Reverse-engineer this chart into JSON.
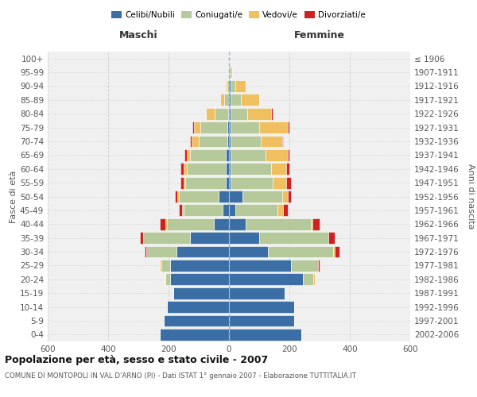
{
  "age_groups": [
    "0-4",
    "5-9",
    "10-14",
    "15-19",
    "20-24",
    "25-29",
    "30-34",
    "35-39",
    "40-44",
    "45-49",
    "50-54",
    "55-59",
    "60-64",
    "65-69",
    "70-74",
    "75-79",
    "80-84",
    "85-89",
    "90-94",
    "95-99",
    "100+"
  ],
  "birth_years": [
    "2002-2006",
    "1997-2001",
    "1992-1996",
    "1987-1991",
    "1982-1986",
    "1977-1981",
    "1972-1976",
    "1967-1971",
    "1962-1966",
    "1957-1961",
    "1952-1956",
    "1947-1951",
    "1942-1946",
    "1937-1941",
    "1932-1936",
    "1927-1931",
    "1922-1926",
    "1917-1921",
    "1912-1916",
    "1907-1911",
    "≤ 1906"
  ],
  "colors": {
    "celibi": "#3a6ea5",
    "coniugati": "#b5c99a",
    "vedovi": "#f0c060",
    "divorziati": "#cc2222"
  },
  "males": {
    "celibi": [
      230,
      215,
      205,
      185,
      195,
      195,
      175,
      130,
      50,
      20,
      35,
      10,
      10,
      10,
      5,
      5,
      2,
      0,
      0,
      0,
      0
    ],
    "coniugati": [
      0,
      0,
      0,
      0,
      15,
      30,
      100,
      155,
      155,
      130,
      130,
      135,
      130,
      120,
      95,
      90,
      45,
      15,
      5,
      0,
      0
    ],
    "vedovi": [
      0,
      0,
      0,
      0,
      0,
      5,
      0,
      0,
      5,
      5,
      5,
      5,
      10,
      10,
      25,
      20,
      30,
      15,
      5,
      0,
      0
    ],
    "divorziati": [
      0,
      0,
      0,
      0,
      0,
      0,
      5,
      10,
      20,
      10,
      10,
      10,
      10,
      8,
      5,
      5,
      0,
      0,
      0,
      0,
      0
    ]
  },
  "females": {
    "celibi": [
      240,
      215,
      215,
      185,
      245,
      205,
      130,
      100,
      55,
      20,
      45,
      5,
      5,
      5,
      5,
      5,
      5,
      5,
      5,
      0,
      0
    ],
    "coniugati": [
      0,
      0,
      0,
      0,
      35,
      90,
      215,
      230,
      215,
      140,
      130,
      140,
      135,
      115,
      100,
      95,
      55,
      35,
      15,
      5,
      0
    ],
    "vedovi": [
      0,
      0,
      0,
      0,
      5,
      0,
      5,
      0,
      5,
      20,
      20,
      45,
      50,
      75,
      70,
      95,
      80,
      60,
      35,
      5,
      0
    ],
    "divorziati": [
      0,
      0,
      0,
      0,
      0,
      5,
      15,
      20,
      25,
      15,
      10,
      15,
      10,
      5,
      5,
      5,
      5,
      0,
      0,
      0,
      0
    ]
  },
  "xlim": 600,
  "title": "Popolazione per età, sesso e stato civile - 2007",
  "subtitle": "COMUNE DI MONTOPOLI IN VAL D'ARNO (PI) - Dati ISTAT 1° gennaio 2007 - Elaborazione TUTTITALIA.IT",
  "xlabel_left": "Maschi",
  "xlabel_right": "Femmine",
  "ylabel_left": "Fasce di età",
  "ylabel_right": "Anni di nascita",
  "legend_labels": [
    "Celibi/Nubili",
    "Coniugati/e",
    "Vedovi/e",
    "Divorziati/e"
  ],
  "bg_color": "#ffffff",
  "plot_bg": "#f0f0f0",
  "grid_color": "#cccccc",
  "bar_height": 0.85
}
